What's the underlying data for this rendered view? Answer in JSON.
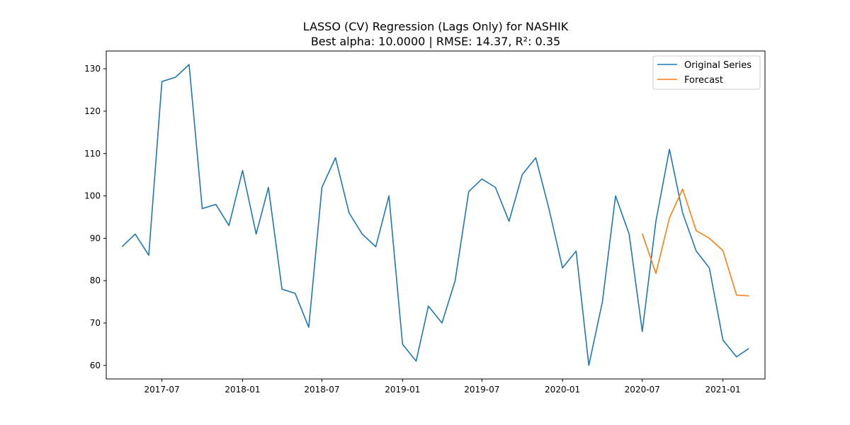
{
  "chart_data": {
    "type": "line",
    "title": "LASSO (CV) Regression (Lags Only) for NASHIK",
    "subtitle": "Best alpha: 10.0000 | RMSE: 14.37, R²: 0.35",
    "xlabel": "",
    "ylabel": "",
    "x_ticks": [
      "2017-07",
      "2018-01",
      "2018-07",
      "2019-01",
      "2019-07",
      "2020-01",
      "2020-07",
      "2021-01"
    ],
    "y_ticks": [
      60,
      70,
      80,
      90,
      100,
      110,
      120,
      130
    ],
    "ylim": [
      56.8,
      134.2
    ],
    "xlim": [
      "2017-02-24",
      "2021-04-07"
    ],
    "grid": false,
    "legend_position": "top-right",
    "series": [
      {
        "name": "Original Series",
        "color": "#1f77b4",
        "x": [
          "2017-04-01",
          "2017-05-01",
          "2017-06-01",
          "2017-07-01",
          "2017-08-01",
          "2017-09-01",
          "2017-10-01",
          "2017-11-01",
          "2017-12-01",
          "2018-01-01",
          "2018-02-01",
          "2018-03-01",
          "2018-04-01",
          "2018-05-01",
          "2018-06-01",
          "2018-07-01",
          "2018-08-01",
          "2018-09-01",
          "2018-10-01",
          "2018-11-01",
          "2018-12-01",
          "2019-01-01",
          "2019-02-01",
          "2019-03-01",
          "2019-04-01",
          "2019-05-01",
          "2019-06-01",
          "2019-07-01",
          "2019-08-01",
          "2019-09-01",
          "2019-10-01",
          "2019-11-01",
          "2019-12-01",
          "2020-01-01",
          "2020-02-01",
          "2020-03-01",
          "2020-04-01",
          "2020-05-01",
          "2020-06-01",
          "2020-07-01",
          "2020-08-01",
          "2020-09-01",
          "2020-10-01",
          "2020-11-01",
          "2020-12-01",
          "2021-01-01",
          "2021-02-01",
          "2021-03-01"
        ],
        "values": [
          88,
          91,
          86,
          127,
          128,
          131,
          97,
          98,
          93,
          106,
          91,
          102,
          78,
          77,
          69,
          102,
          109,
          96,
          91,
          88,
          100,
          65,
          61,
          74,
          70,
          80,
          101,
          104,
          102,
          94,
          105,
          109,
          97,
          83,
          87,
          60,
          75,
          100,
          91,
          68,
          94,
          111,
          96,
          87,
          83,
          66,
          62,
          64
        ]
      },
      {
        "name": "Forecast",
        "color": "#ff7f0e",
        "x": [
          "2020-07-01",
          "2020-08-01",
          "2020-09-01",
          "2020-10-01",
          "2020-11-01",
          "2020-12-01",
          "2021-01-01",
          "2021-02-01",
          "2021-03-01"
        ],
        "values": [
          91.1,
          81.7,
          94.8,
          101.6,
          91.8,
          90.0,
          87.1,
          76.6,
          76.4
        ]
      }
    ]
  }
}
